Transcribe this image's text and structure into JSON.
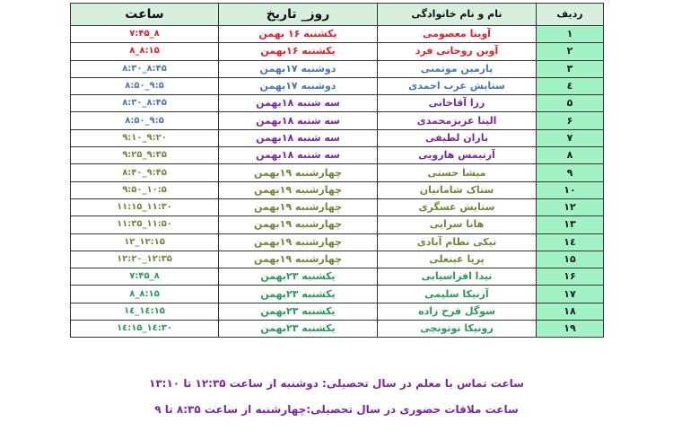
{
  "headers": {
    "index": "ردیف",
    "name": "نام و نام خانوادگی",
    "date": "روز_ تاریخ",
    "time": "ساعت"
  },
  "colors": {
    "red": "#e2202a",
    "blue": "#4a78b0",
    "purple": "#7a2a9e",
    "olive": "#6b8a3a",
    "green": "#2a9a5a",
    "index_bg": "#a3f2c6",
    "header_bg": "#d6efdf"
  },
  "rows": [
    {
      "index": "۱",
      "name": "آوینا معصومی",
      "date": "یکشنبه ۱۶ بهمن",
      "time": "۷:۴۵_۸",
      "nc": "red",
      "dc": "red",
      "tc": "red"
    },
    {
      "index": "۲",
      "name": "آوین روحانی فرد",
      "date": "یکشنبه ۱۶بهمن",
      "time": "۸_۸:۱۵",
      "nc": "red",
      "dc": "red",
      "tc": "red"
    },
    {
      "index": "۳",
      "name": "پارمین موتمنی",
      "date": "دوشنبه ۱۷بهمن",
      "time": "۸:۳۰_۸:۴۵",
      "nc": "blue",
      "dc": "blue",
      "tc": "blue"
    },
    {
      "index": "٤",
      "name": "ستایش عرب احمدی",
      "date": "دوشنبه ۱۷بهمن",
      "time": "۸:۵۰_۹:۵",
      "nc": "blue",
      "dc": "blue",
      "tc": "blue"
    },
    {
      "index": "۵",
      "name": "رزا آقاخانی",
      "date": "سه شنبه ۱۸بهمن",
      "time": "۸:۳۰_۸:۴۵",
      "nc": "purple",
      "dc": "purple",
      "tc": "blue"
    },
    {
      "index": "۶",
      "name": "الینا عزیزمحمدی",
      "date": "سه شنبه ۱۸بهمن",
      "time": "۸:۵۰_۹:۵",
      "nc": "purple",
      "dc": "purple",
      "tc": "blue"
    },
    {
      "index": "۷",
      "name": "باران لطیفی",
      "date": "سه شنبه ۱۸بهمن",
      "time": "۹:۱۰_۹:۲۰",
      "nc": "purple",
      "dc": "purple",
      "tc": "olive"
    },
    {
      "index": "۸",
      "name": "آرتیمس هارویی",
      "date": "سه شنبه ۱۸بهمن",
      "time": "۹:۲۵_۹:۳۵",
      "nc": "purple",
      "dc": "purple",
      "tc": "olive"
    },
    {
      "index": "۹",
      "name": "میشا حسنی",
      "date": "چهارشنبه ۱۹بهمن",
      "time": "۸:۴۰_۹:۴۵",
      "nc": "olive",
      "dc": "olive",
      "tc": "olive"
    },
    {
      "index": "۱۰",
      "name": "ستاک شامانیان",
      "date": "چهارشنبه ۱۹بهمن",
      "time": "۹:۵۰_۱۰:۵",
      "nc": "olive",
      "dc": "olive",
      "tc": "olive"
    },
    {
      "index": "۱۲",
      "name": "ستایش عسگری",
      "date": "چهارشنبه ۱۹بهمن",
      "time": "۱۱:۱۵_۱۱:۳۰",
      "nc": "olive",
      "dc": "olive",
      "tc": "olive"
    },
    {
      "index": "۱۳",
      "name": "هانا سرایی",
      "date": "چهارشنبه ۱۹بهمن",
      "time": "۱۱:۳۵_۱۱:۵۰",
      "nc": "olive",
      "dc": "olive",
      "tc": "olive"
    },
    {
      "index": "۱٤",
      "name": "نیکی نظام آبادی",
      "date": "چهارشنبه ۱۹بهمن",
      "time": "۱۲_۱۲:۱۵",
      "nc": "olive",
      "dc": "olive",
      "tc": "olive"
    },
    {
      "index": "۱۵",
      "name": "پریا عینعلی",
      "date": "چهارشنبه ۱۹بهمن",
      "time": "۱۲:۲۰_۱۲:۳۵",
      "nc": "olive",
      "dc": "olive",
      "tc": "olive"
    },
    {
      "index": "۱۶",
      "name": "نیدا افراسیابی",
      "date": "یکشنبه ۲۳بهمن",
      "time": "۷:۴۵_۸",
      "nc": "green",
      "dc": "green",
      "tc": "green"
    },
    {
      "index": "۱۷",
      "name": "آرنیکا سلیمی",
      "date": "یکشنبه ۲۳بهمن",
      "time": "۸_۸:۱۵",
      "nc": "green",
      "dc": "green",
      "tc": "green"
    },
    {
      "index": "۱۸",
      "name": "سوگل فرخ زاده",
      "date": "یکشنبه ۲۳بهمن",
      "time": "۱٤_۱٤:۱۵",
      "nc": "green",
      "dc": "green",
      "tc": "green"
    },
    {
      "index": "۱۹",
      "name": "رونیکا توتونچی",
      "date": "یکشنبه ۲۳بهمن",
      "time": "۱٤:۱۵_۱٤:۳۰",
      "nc": "green",
      "dc": "green",
      "tc": "green"
    }
  ],
  "notes": {
    "contact": "ساعت تماس با معلم در سال تحصیلی: دوشنبه از ساعت ۱۲:۳۵ تا ۱۳:۱۰",
    "visit": "ساعت ملاقات حضوری در سال تحصیلی:چهارشنبه  از ساعت ۸:۳۵ تا  ۹"
  }
}
